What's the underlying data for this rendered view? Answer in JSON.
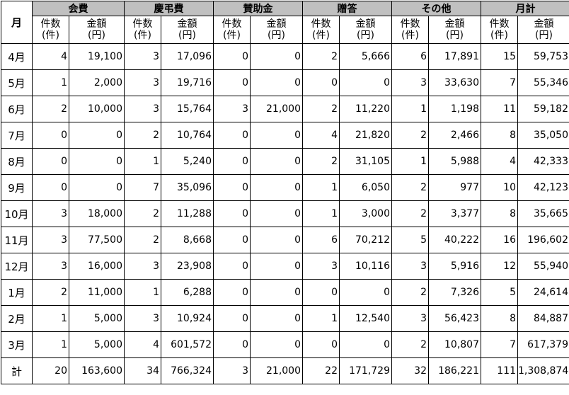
{
  "header": {
    "month_label": "月",
    "categories": [
      "会費",
      "慶弔費",
      "賛助金",
      "贈答",
      "その他",
      "月計"
    ],
    "count_top": "件数",
    "count_bottom": "(件)",
    "amount_top": "金額",
    "amount_bottom": "(円)"
  },
  "rows": [
    {
      "month": "4月",
      "cells": [
        "4",
        "19,100",
        "3",
        "17,096",
        "0",
        "0",
        "2",
        "5,666",
        "6",
        "17,891",
        "15",
        "59,753"
      ]
    },
    {
      "month": "5月",
      "cells": [
        "1",
        "2,000",
        "3",
        "19,716",
        "0",
        "0",
        "0",
        "0",
        "3",
        "33,630",
        "7",
        "55,346"
      ]
    },
    {
      "month": "6月",
      "cells": [
        "2",
        "10,000",
        "3",
        "15,764",
        "3",
        "21,000",
        "2",
        "11,220",
        "1",
        "1,198",
        "11",
        "59,182"
      ]
    },
    {
      "month": "7月",
      "cells": [
        "0",
        "0",
        "2",
        "10,764",
        "0",
        "0",
        "4",
        "21,820",
        "2",
        "2,466",
        "8",
        "35,050"
      ]
    },
    {
      "month": "8月",
      "cells": [
        "0",
        "0",
        "1",
        "5,240",
        "0",
        "0",
        "2",
        "31,105",
        "1",
        "5,988",
        "4",
        "42,333"
      ]
    },
    {
      "month": "9月",
      "cells": [
        "0",
        "0",
        "7",
        "35,096",
        "0",
        "0",
        "1",
        "6,050",
        "2",
        "977",
        "10",
        "42,123"
      ]
    },
    {
      "month": "10月",
      "cells": [
        "3",
        "18,000",
        "2",
        "11,288",
        "0",
        "0",
        "1",
        "3,000",
        "2",
        "3,377",
        "8",
        "35,665"
      ]
    },
    {
      "month": "11月",
      "cells": [
        "3",
        "77,500",
        "2",
        "8,668",
        "0",
        "0",
        "6",
        "70,212",
        "5",
        "40,222",
        "16",
        "196,602"
      ]
    },
    {
      "month": "12月",
      "cells": [
        "3",
        "16,000",
        "3",
        "23,908",
        "0",
        "0",
        "3",
        "10,116",
        "3",
        "5,916",
        "12",
        "55,940"
      ]
    },
    {
      "month": "1月",
      "cells": [
        "2",
        "11,000",
        "1",
        "6,288",
        "0",
        "0",
        "0",
        "0",
        "2",
        "7,326",
        "5",
        "24,614"
      ]
    },
    {
      "month": "2月",
      "cells": [
        "1",
        "5,000",
        "3",
        "10,924",
        "0",
        "0",
        "1",
        "12,540",
        "3",
        "56,423",
        "8",
        "84,887"
      ]
    },
    {
      "month": "3月",
      "cells": [
        "1",
        "5,000",
        "4",
        "601,572",
        "0",
        "0",
        "0",
        "0",
        "2",
        "10,807",
        "7",
        "617,379"
      ]
    },
    {
      "month": "計",
      "cells": [
        "20",
        "163,600",
        "34",
        "766,324",
        "3",
        "21,000",
        "22",
        "171,729",
        "32",
        "186,221",
        "111",
        "1,308,874"
      ]
    }
  ]
}
